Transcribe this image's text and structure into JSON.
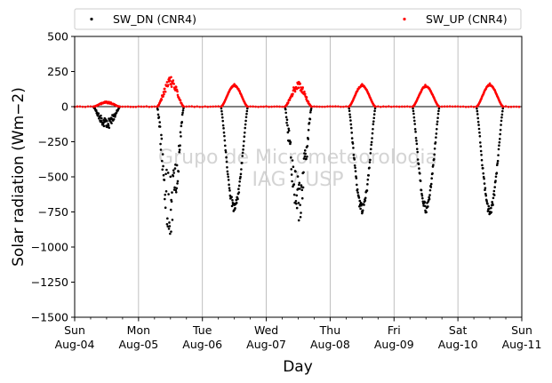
{
  "chart_data": {
    "type": "scatter",
    "title": "",
    "xlabel": "Day",
    "ylabel": "Solar radiation (Wm−2)",
    "watermark": [
      "Grupo de Micrometeorologia",
      "IAG / USP"
    ],
    "legend": {
      "placement": "top",
      "entries": [
        {
          "name": "SW_DN (CNR4)",
          "color": "#000000"
        },
        {
          "name": "SW_UP (CNR4)",
          "color": "#ff0000"
        }
      ]
    },
    "grid": "x-only",
    "xlim": [
      0,
      7
    ],
    "ylim": [
      -1500,
      500
    ],
    "x_ticks": [
      {
        "value": 0,
        "line1": "Sun",
        "line2": "Aug-04"
      },
      {
        "value": 1,
        "line1": "Mon",
        "line2": "Aug-05"
      },
      {
        "value": 2,
        "line1": "Tue",
        "line2": "Aug-06"
      },
      {
        "value": 3,
        "line1": "Wed",
        "line2": "Aug-07"
      },
      {
        "value": 4,
        "line1": "Thu",
        "line2": "Aug-08"
      },
      {
        "value": 5,
        "line1": "Fri",
        "line2": "Aug-09"
      },
      {
        "value": 6,
        "line1": "Sat",
        "line2": "Aug-10"
      },
      {
        "value": 7,
        "line1": "Sun",
        "line2": "Aug-11"
      }
    ],
    "y_ticks": [
      "500",
      "250",
      "0",
      "−250",
      "−500",
      "−750",
      "−1000",
      "−1250",
      "−1500"
    ],
    "y_tick_values": [
      500,
      250,
      0,
      -250,
      -500,
      -750,
      -1000,
      -1250,
      -1500
    ],
    "series": [
      {
        "name": "SW_DN (CNR4)",
        "color": "#000000",
        "daily_minimum": [
          {
            "day": "Aug-04",
            "time": 0.54,
            "value": -150
          },
          {
            "day": "Aug-05",
            "time": 1.51,
            "value": -890
          },
          {
            "day": "Aug-06",
            "time": 2.5,
            "value": -735
          },
          {
            "day": "Aug-07",
            "time": 3.51,
            "value": -810
          },
          {
            "day": "Aug-08",
            "time": 4.5,
            "value": -745
          },
          {
            "day": "Aug-09",
            "time": 5.49,
            "value": -740
          },
          {
            "day": "Aug-10",
            "time": 6.5,
            "value": -760
          }
        ]
      },
      {
        "name": "SW_UP (CNR4)",
        "color": "#ff0000",
        "daily_maximum": [
          {
            "day": "Aug-04",
            "time": 0.5,
            "value": 35
          },
          {
            "day": "Aug-05",
            "time": 1.51,
            "value": 210
          },
          {
            "day": "Aug-06",
            "time": 2.5,
            "value": 160
          },
          {
            "day": "Aug-07",
            "time": 3.51,
            "value": 175
          },
          {
            "day": "Aug-08",
            "time": 4.5,
            "value": 160
          },
          {
            "day": "Aug-09",
            "time": 5.49,
            "value": 155
          },
          {
            "day": "Aug-10",
            "time": 6.5,
            "value": 165
          }
        ]
      }
    ]
  }
}
